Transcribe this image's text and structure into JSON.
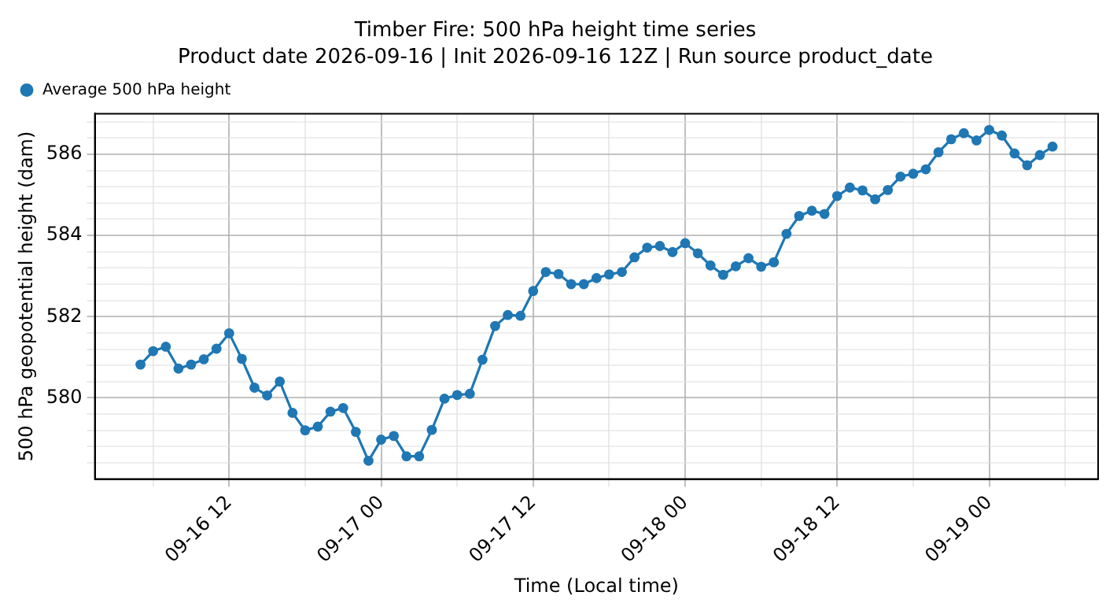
{
  "chart_data": {
    "type": "line",
    "title": "Timber Fire: 500 hPa height time series",
    "subtitle": "Product date 2026-09-16 | Init 2026-09-16 12Z | Run source product_date",
    "xlabel": "Time (Local time)",
    "ylabel": "500 hPa geopotential height (dam)",
    "x": [
      "2026-09-16T05:00",
      "2026-09-16T06:00",
      "2026-09-16T07:00",
      "2026-09-16T08:00",
      "2026-09-16T09:00",
      "2026-09-16T10:00",
      "2026-09-16T11:00",
      "2026-09-16T12:00",
      "2026-09-16T13:00",
      "2026-09-16T14:00",
      "2026-09-16T15:00",
      "2026-09-16T16:00",
      "2026-09-16T17:00",
      "2026-09-16T18:00",
      "2026-09-16T19:00",
      "2026-09-16T20:00",
      "2026-09-16T21:00",
      "2026-09-16T22:00",
      "2026-09-16T23:00",
      "2026-09-17T00:00",
      "2026-09-17T01:00",
      "2026-09-17T02:00",
      "2026-09-17T03:00",
      "2026-09-17T04:00",
      "2026-09-17T05:00",
      "2026-09-17T06:00",
      "2026-09-17T07:00",
      "2026-09-17T08:00",
      "2026-09-17T09:00",
      "2026-09-17T10:00",
      "2026-09-17T11:00",
      "2026-09-17T12:00",
      "2026-09-17T13:00",
      "2026-09-17T14:00",
      "2026-09-17T15:00",
      "2026-09-17T16:00",
      "2026-09-17T17:00",
      "2026-09-17T18:00",
      "2026-09-17T19:00",
      "2026-09-17T20:00",
      "2026-09-17T21:00",
      "2026-09-17T22:00",
      "2026-09-17T23:00",
      "2026-09-18T00:00",
      "2026-09-18T01:00",
      "2026-09-18T02:00",
      "2026-09-18T03:00",
      "2026-09-18T04:00",
      "2026-09-18T05:00",
      "2026-09-18T06:00",
      "2026-09-18T07:00",
      "2026-09-18T08:00",
      "2026-09-18T09:00",
      "2026-09-18T10:00",
      "2026-09-18T11:00",
      "2026-09-18T12:00",
      "2026-09-18T13:00",
      "2026-09-18T14:00",
      "2026-09-18T15:00",
      "2026-09-18T16:00",
      "2026-09-18T17:00",
      "2026-09-18T18:00",
      "2026-09-18T19:00",
      "2026-09-18T20:00",
      "2026-09-18T21:00",
      "2026-09-18T22:00",
      "2026-09-18T23:00",
      "2026-09-19T00:00",
      "2026-09-19T01:00",
      "2026-09-19T02:00",
      "2026-09-19T03:00",
      "2026-09-19T04:00",
      "2026-09-19T05:00"
    ],
    "series": [
      {
        "name": "Average 500 hPa height",
        "color": "#1f77b4",
        "values": [
          580.82,
          581.15,
          581.26,
          580.72,
          580.82,
          580.95,
          581.21,
          581.59,
          580.96,
          580.25,
          580.06,
          580.4,
          579.63,
          579.2,
          579.29,
          579.66,
          579.75,
          579.16,
          578.45,
          578.97,
          579.06,
          578.56,
          578.56,
          579.21,
          579.98,
          580.07,
          580.1,
          580.94,
          581.77,
          582.04,
          582.02,
          582.63,
          583.1,
          583.05,
          582.8,
          582.8,
          582.95,
          583.04,
          583.1,
          583.46,
          583.7,
          583.74,
          583.59,
          583.81,
          583.56,
          583.26,
          583.03,
          583.24,
          583.44,
          583.23,
          583.34,
          584.04,
          584.48,
          584.61,
          584.53,
          584.97,
          585.18,
          585.11,
          584.89,
          585.12,
          585.45,
          585.52,
          585.63,
          586.05,
          586.37,
          586.52,
          586.34,
          586.6,
          586.46,
          586.02,
          585.73,
          585.98,
          586.19
        ]
      }
    ],
    "xlim": [
      "2026-09-16T01:24",
      "2026-09-19T08:36"
    ],
    "xticks": [
      {
        "value": "2026-09-16T06:00",
        "label": null
      },
      {
        "value": "2026-09-16T12:00",
        "label": "09-16 12"
      },
      {
        "value": "2026-09-16T18:00",
        "label": null
      },
      {
        "value": "2026-09-17T00:00",
        "label": "09-17 00"
      },
      {
        "value": "2026-09-17T06:00",
        "label": null
      },
      {
        "value": "2026-09-17T12:00",
        "label": "09-17 12"
      },
      {
        "value": "2026-09-17T18:00",
        "label": null
      },
      {
        "value": "2026-09-18T00:00",
        "label": "09-18 00"
      },
      {
        "value": "2026-09-18T06:00",
        "label": null
      },
      {
        "value": "2026-09-18T12:00",
        "label": "09-18 12"
      },
      {
        "value": "2026-09-18T18:00",
        "label": null
      },
      {
        "value": "2026-09-19T00:00",
        "label": "09-19 00"
      },
      {
        "value": "2026-09-19T06:00",
        "label": null
      }
    ],
    "ylim": [
      578,
      587
    ],
    "yticks": [
      {
        "value": 578.4,
        "label": null
      },
      {
        "value": 578.8,
        "label": null
      },
      {
        "value": 579.2,
        "label": null
      },
      {
        "value": 579.6,
        "label": null
      },
      580,
      {
        "value": 580.4,
        "label": null
      },
      {
        "value": 580.8,
        "label": null
      },
      {
        "value": 581.2,
        "label": null
      },
      {
        "value": 581.6,
        "label": null
      },
      582,
      {
        "value": 582.4,
        "label": null
      },
      {
        "value": 582.8,
        "label": null
      },
      {
        "value": 583.2,
        "label": null
      },
      {
        "value": 583.6,
        "label": null
      },
      584,
      {
        "value": 584.4,
        "label": null
      },
      {
        "value": 584.8,
        "label": null
      },
      {
        "value": 585.2,
        "label": null
      },
      {
        "value": 585.6,
        "label": null
      },
      586,
      {
        "value": 586.4,
        "label": null
      },
      {
        "value": 586.8,
        "label": null
      }
    ],
    "grid": true,
    "legend": "top left",
    "marker": "circle",
    "line_style": "solid"
  }
}
